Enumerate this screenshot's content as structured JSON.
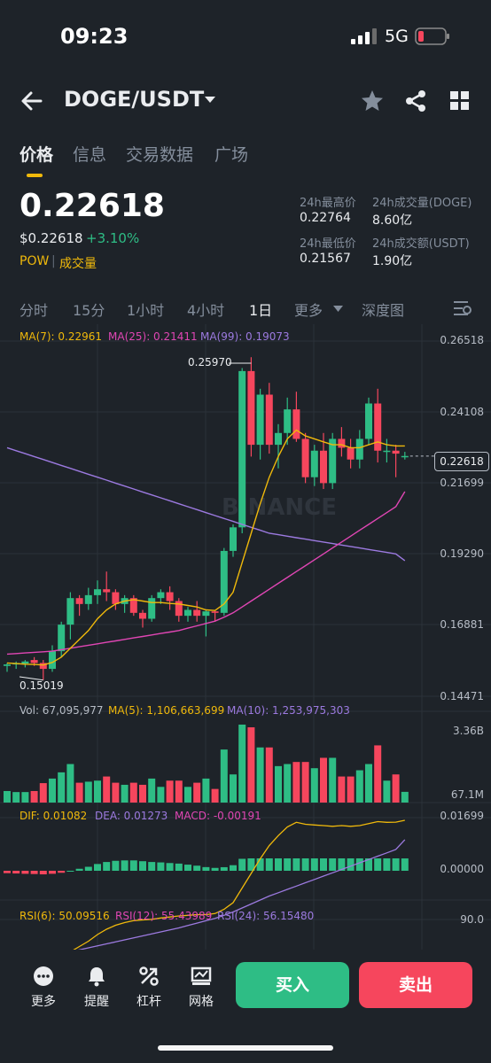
{
  "status_bar": {
    "time": "09:23",
    "network": "5G",
    "battery_color": "#f6465d"
  },
  "header": {
    "pair": "DOGE/USDT",
    "icons": [
      "back-arrow-icon",
      "star-icon",
      "share-icon",
      "grid-icon"
    ]
  },
  "tabs": [
    {
      "label": "价格",
      "active": true
    },
    {
      "label": "信息",
      "active": false
    },
    {
      "label": "交易数据",
      "active": false
    },
    {
      "label": "广场",
      "active": false
    }
  ],
  "price": {
    "last": "0.22618",
    "usd": "$0.22618",
    "change": "+3.10%",
    "tag_pow": "POW",
    "tag_sep": "|",
    "tag_volume": "成交量"
  },
  "stats": {
    "high_label": "24h最高价",
    "high_value": "0.22764",
    "vol_doge_label": "24h成交量(DOGE)",
    "vol_doge_value": "8.60亿",
    "low_label": "24h最低价",
    "low_value": "0.21567",
    "vol_usdt_label": "24h成交额(USDT)",
    "vol_usdt_value": "1.90亿"
  },
  "intervals": {
    "items": [
      "分时",
      "15分",
      "1小时",
      "4小时",
      "1日",
      "更多",
      "深度图"
    ],
    "active": "1日"
  },
  "indicators": {
    "ma7": "MA(7): 0.22961",
    "ma25": "MA(25): 0.21411",
    "ma99": "MA(99): 0.19073",
    "vol": "Vol: 67,095,977",
    "vol_ma5": "MA(5): 1,106,663,699",
    "vol_ma10": "MA(10): 1,253,975,303",
    "dif": "DIF: 0.01082",
    "dea": "DEA: 0.01273",
    "macd": "MACD: -0.00191",
    "rsi6": "RSI(6): 50.09516",
    "rsi12": "RSI(12): 55.43989",
    "rsi24": "RSI(24): 56.15480"
  },
  "chart_data": {
    "type": "candlestick",
    "y_labels": [
      "0.26518",
      "0.24108",
      "0.21699",
      "0.19290",
      "0.16881",
      "0.14471"
    ],
    "current_price_label": "0.22618",
    "high_label": "0.25970",
    "low_label": "0.15019",
    "watermark": "BINANCE",
    "up_color": "#2ebd85",
    "down_color": "#f6465d",
    "candles": [
      {
        "o": 0.155,
        "h": 0.156,
        "l": 0.153,
        "c": 0.1555
      },
      {
        "o": 0.1555,
        "h": 0.1565,
        "l": 0.154,
        "c": 0.156
      },
      {
        "o": 0.1558,
        "h": 0.157,
        "l": 0.1545,
        "c": 0.1565
      },
      {
        "o": 0.157,
        "h": 0.158,
        "l": 0.155,
        "c": 0.156
      },
      {
        "o": 0.156,
        "h": 0.157,
        "l": 0.1502,
        "c": 0.154
      },
      {
        "o": 0.154,
        "h": 0.162,
        "l": 0.153,
        "c": 0.16
      },
      {
        "o": 0.16,
        "h": 0.17,
        "l": 0.158,
        "c": 0.169
      },
      {
        "o": 0.169,
        "h": 0.18,
        "l": 0.164,
        "c": 0.178
      },
      {
        "o": 0.178,
        "h": 0.179,
        "l": 0.172,
        "c": 0.176
      },
      {
        "o": 0.176,
        "h": 0.1815,
        "l": 0.174,
        "c": 0.179
      },
      {
        "o": 0.179,
        "h": 0.184,
        "l": 0.176,
        "c": 0.181
      },
      {
        "o": 0.181,
        "h": 0.187,
        "l": 0.177,
        "c": 0.18
      },
      {
        "o": 0.18,
        "h": 0.181,
        "l": 0.174,
        "c": 0.176
      },
      {
        "o": 0.176,
        "h": 0.179,
        "l": 0.173,
        "c": 0.178
      },
      {
        "o": 0.178,
        "h": 0.179,
        "l": 0.172,
        "c": 0.173
      },
      {
        "o": 0.173,
        "h": 0.174,
        "l": 0.168,
        "c": 0.171
      },
      {
        "o": 0.171,
        "h": 0.179,
        "l": 0.17,
        "c": 0.178
      },
      {
        "o": 0.178,
        "h": 0.181,
        "l": 0.176,
        "c": 0.18
      },
      {
        "o": 0.18,
        "h": 0.182,
        "l": 0.174,
        "c": 0.177
      },
      {
        "o": 0.177,
        "h": 0.178,
        "l": 0.17,
        "c": 0.172
      },
      {
        "o": 0.172,
        "h": 0.175,
        "l": 0.17,
        "c": 0.174
      },
      {
        "o": 0.174,
        "h": 0.177,
        "l": 0.17,
        "c": 0.172
      },
      {
        "o": 0.172,
        "h": 0.174,
        "l": 0.165,
        "c": 0.1735
      },
      {
        "o": 0.1735,
        "h": 0.174,
        "l": 0.17,
        "c": 0.173
      },
      {
        "o": 0.173,
        "h": 0.195,
        "l": 0.172,
        "c": 0.194
      },
      {
        "o": 0.194,
        "h": 0.203,
        "l": 0.192,
        "c": 0.202
      },
      {
        "o": 0.202,
        "h": 0.256,
        "l": 0.2,
        "c": 0.255
      },
      {
        "o": 0.255,
        "h": 0.2597,
        "l": 0.226,
        "c": 0.23
      },
      {
        "o": 0.23,
        "h": 0.249,
        "l": 0.225,
        "c": 0.247
      },
      {
        "o": 0.247,
        "h": 0.251,
        "l": 0.227,
        "c": 0.23
      },
      {
        "o": 0.23,
        "h": 0.237,
        "l": 0.222,
        "c": 0.234
      },
      {
        "o": 0.234,
        "h": 0.246,
        "l": 0.23,
        "c": 0.242
      },
      {
        "o": 0.242,
        "h": 0.248,
        "l": 0.231,
        "c": 0.232
      },
      {
        "o": 0.232,
        "h": 0.234,
        "l": 0.217,
        "c": 0.219
      },
      {
        "o": 0.219,
        "h": 0.23,
        "l": 0.216,
        "c": 0.228
      },
      {
        "o": 0.228,
        "h": 0.234,
        "l": 0.215,
        "c": 0.217
      },
      {
        "o": 0.217,
        "h": 0.234,
        "l": 0.215,
        "c": 0.232
      },
      {
        "o": 0.232,
        "h": 0.236,
        "l": 0.226,
        "c": 0.229
      },
      {
        "o": 0.229,
        "h": 0.232,
        "l": 0.222,
        "c": 0.225
      },
      {
        "o": 0.225,
        "h": 0.235,
        "l": 0.222,
        "c": 0.232
      },
      {
        "o": 0.232,
        "h": 0.246,
        "l": 0.23,
        "c": 0.244
      },
      {
        "o": 0.244,
        "h": 0.249,
        "l": 0.224,
        "c": 0.228
      },
      {
        "o": 0.228,
        "h": 0.232,
        "l": 0.224,
        "c": 0.228
      },
      {
        "o": 0.228,
        "h": 0.23,
        "l": 0.219,
        "c": 0.227
      },
      {
        "o": 0.2262,
        "h": 0.2276,
        "l": 0.225,
        "c": 0.2262
      }
    ],
    "ma7": [
      0.156,
      0.1558,
      0.1556,
      0.1555,
      0.1553,
      0.1562,
      0.158,
      0.161,
      0.164,
      0.167,
      0.171,
      0.174,
      0.176,
      0.177,
      0.1775,
      0.177,
      0.1765,
      0.1765,
      0.1762,
      0.176,
      0.1755,
      0.175,
      0.174,
      0.1738,
      0.176,
      0.18,
      0.19,
      0.2,
      0.21,
      0.219,
      0.226,
      0.232,
      0.235,
      0.233,
      0.232,
      0.231,
      0.23,
      0.23,
      0.229,
      0.229,
      0.23,
      0.231,
      0.23,
      0.2296,
      0.2296
    ],
    "ma25": [
      0.159,
      0.1592,
      0.1594,
      0.1596,
      0.1598,
      0.16,
      0.1605,
      0.161,
      0.1615,
      0.162,
      0.1625,
      0.163,
      0.1635,
      0.164,
      0.1645,
      0.165,
      0.1655,
      0.166,
      0.1665,
      0.167,
      0.1678,
      0.1686,
      0.1694,
      0.1702,
      0.1715,
      0.173,
      0.175,
      0.177,
      0.179,
      0.181,
      0.183,
      0.185,
      0.187,
      0.189,
      0.191,
      0.193,
      0.195,
      0.197,
      0.199,
      0.201,
      0.203,
      0.205,
      0.207,
      0.209,
      0.2141
    ],
    "ma99": [
      0.229,
      0.228,
      0.227,
      0.226,
      0.225,
      0.224,
      0.223,
      0.222,
      0.221,
      0.22,
      0.219,
      0.218,
      0.217,
      0.216,
      0.215,
      0.214,
      0.213,
      0.212,
      0.211,
      0.21,
      0.209,
      0.208,
      0.207,
      0.206,
      0.205,
      0.204,
      0.203,
      0.202,
      0.201,
      0.2,
      0.1995,
      0.199,
      0.1985,
      0.198,
      0.1975,
      0.197,
      0.1965,
      0.196,
      0.1955,
      0.195,
      0.1945,
      0.194,
      0.1935,
      0.193,
      0.1907
    ],
    "volume_labels": [
      "3.36B",
      "67.1M"
    ],
    "macd_labels": [
      "0.01699",
      "0.00000"
    ],
    "rsi_labels": [
      "90.0"
    ]
  },
  "bottom_nav": [
    {
      "label": "更多",
      "icon": "more-dots-icon"
    },
    {
      "label": "提醒",
      "icon": "bell-icon"
    },
    {
      "label": "杠杆",
      "icon": "leverage-icon"
    },
    {
      "label": "网格",
      "icon": "grid-trading-icon"
    }
  ],
  "actions": {
    "buy": "买入",
    "sell": "卖出"
  }
}
